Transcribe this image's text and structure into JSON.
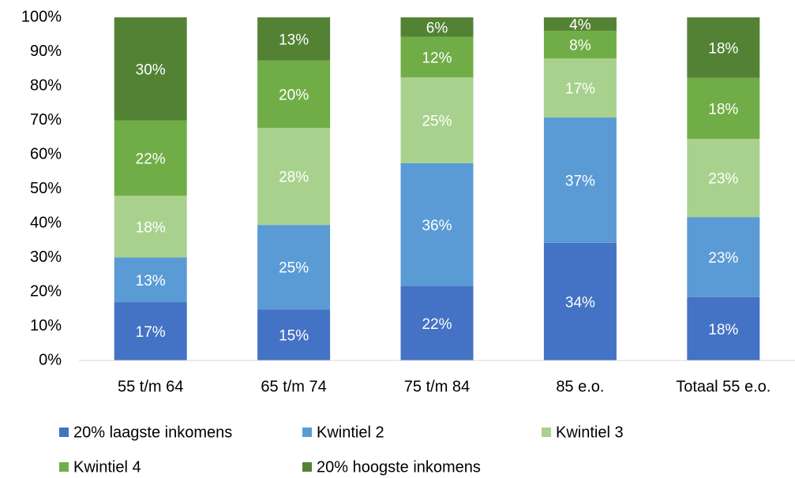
{
  "chart_data": {
    "type": "stacked_bar",
    "categories": [
      "55 t/m 64",
      "65 t/m 74",
      "75 t/m 84",
      "85 e.o.",
      "Totaal 55 e.o."
    ],
    "series": [
      {
        "name": "20% laagste inkomens",
        "color": "#4472c4",
        "values": [
          17,
          14.9,
          21.7,
          34.3,
          18.4
        ],
        "value_labels": [
          "17%",
          "15%",
          "22%",
          "34%",
          "18%"
        ]
      },
      {
        "name": "Kwintiel 2",
        "color": "#5b9bd5",
        "values": [
          13,
          24.6,
          35.8,
          36.5,
          23.4
        ],
        "value_labels": [
          "13%",
          "25%",
          "36%",
          "37%",
          "23%"
        ]
      },
      {
        "name": "Kwintiel 3",
        "color": "#a9d18e",
        "values": [
          18,
          28.3,
          25.0,
          17.2,
          22.8
        ],
        "value_labels": [
          "18%",
          "28%",
          "25%",
          "17%",
          "23%"
        ]
      },
      {
        "name": "Kwintiel 4",
        "color": "#70ad47",
        "values": [
          22,
          19.6,
          11.8,
          8.1,
          17.8
        ],
        "value_labels": [
          "22%",
          "20%",
          "12%",
          "8%",
          "18%"
        ]
      },
      {
        "name": "20% hoogste inkomens",
        "color": "#548235",
        "values": [
          30,
          12.6,
          5.7,
          3.9,
          17.6
        ],
        "value_labels": [
          "30%",
          "13%",
          "6%",
          "4%",
          "18%"
        ]
      }
    ],
    "ylim": [
      0,
      100
    ],
    "yticks": [
      {
        "value": 0,
        "label": "0%"
      },
      {
        "value": 10,
        "label": "10%"
      },
      {
        "value": 20,
        "label": "20%"
      },
      {
        "value": 30,
        "label": "30%"
      },
      {
        "value": 40,
        "label": "40%"
      },
      {
        "value": 50,
        "label": "50%"
      },
      {
        "value": 60,
        "label": "60%"
      },
      {
        "value": 70,
        "label": "70%"
      },
      {
        "value": 80,
        "label": "80%"
      },
      {
        "value": 90,
        "label": "90%"
      },
      {
        "value": 100,
        "label": "100%"
      }
    ],
    "grid": false,
    "legend": "bottom"
  }
}
